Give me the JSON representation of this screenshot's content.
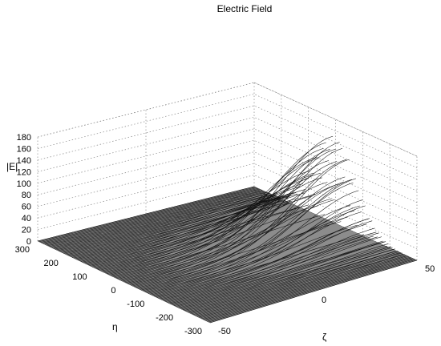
{
  "chart_data": {
    "type": "surface",
    "title": "Electric Field",
    "xlabel": "ζ",
    "ylabel": "η",
    "zlabel": "|E|",
    "x_ticks": [
      "-50",
      "0",
      "50"
    ],
    "y_ticks": [
      "300",
      "200",
      "100",
      "0",
      "-100",
      "-200",
      "-300"
    ],
    "z_ticks": [
      "0",
      "20",
      "40",
      "60",
      "80",
      "100",
      "120",
      "140",
      "160",
      "180"
    ],
    "xlim": [
      -50,
      50
    ],
    "ylim": [
      -300,
      300
    ],
    "zlim": [
      0,
      180
    ],
    "grid": true,
    "surface_color": "#8c8c8c",
    "peak": {
      "value": 150,
      "eta": 0,
      "zeta": 50
    },
    "envelope": "gaussian-like along η, decaying toward ζ = -50, with oscillating ripple"
  }
}
